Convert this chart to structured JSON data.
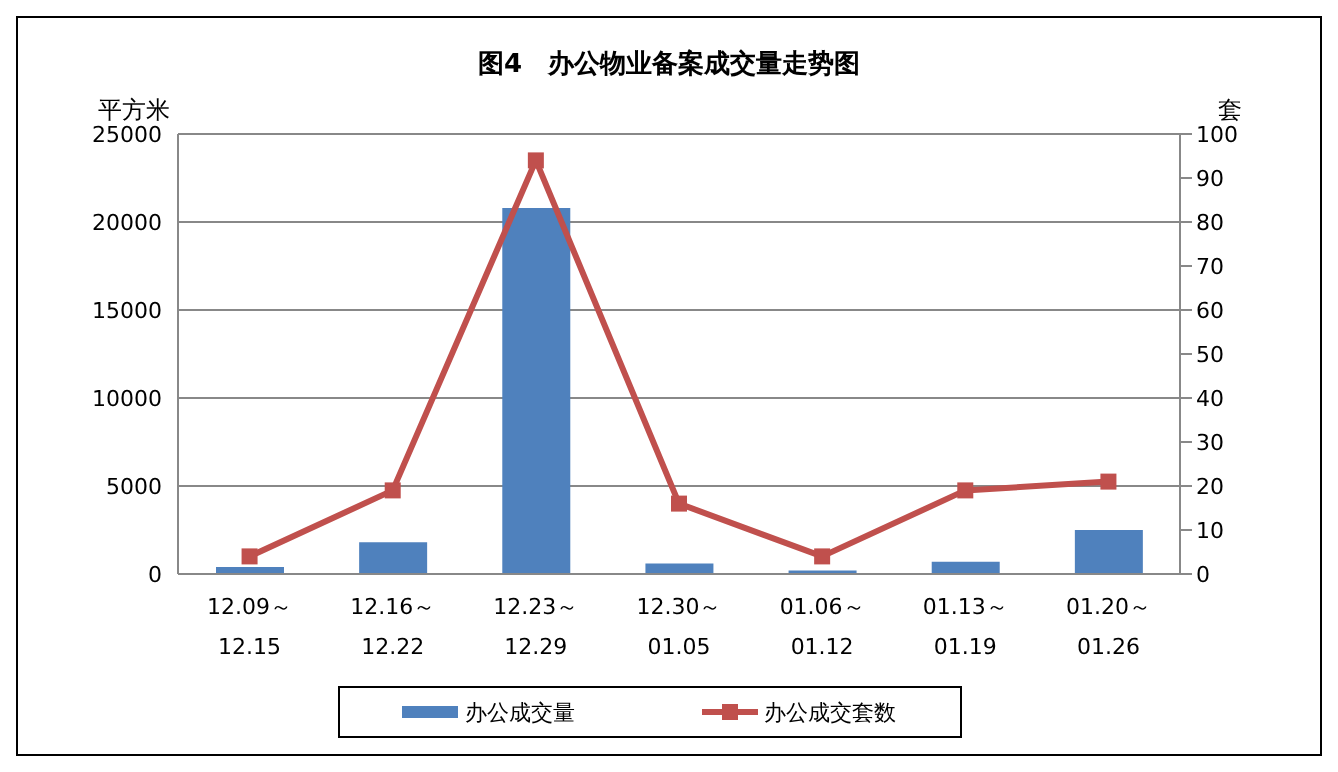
{
  "chart_data": {
    "type": "bar",
    "title": "图4　办公物业备案成交量走势图",
    "ylabel": "平方米",
    "y2label": "套",
    "categories": [
      "12.09～\n12.15",
      "12.16～\n12.22",
      "12.23～\n12.29",
      "12.30～\n01.05",
      "01.06～\n01.12",
      "01.13～\n01.19",
      "01.20～\n01.26"
    ],
    "series": [
      {
        "name": "办公成交量",
        "color": "#4f81bd",
        "values": [
          400,
          1800,
          20800,
          600,
          200,
          700,
          2500
        ]
      },
      {
        "name": "办公成交套数",
        "type": "line",
        "axis": "y2",
        "color": "#c0504d",
        "marker": "square",
        "values": [
          4,
          19,
          94,
          16,
          4,
          19,
          21
        ]
      }
    ],
    "ylim": [
      0,
      25000
    ],
    "yticks": [
      0,
      5000,
      10000,
      15000,
      20000,
      25000
    ],
    "y2lim": [
      0,
      100
    ],
    "y2ticks": [
      0,
      10,
      20,
      30,
      40,
      50,
      60,
      70,
      80,
      90,
      100
    ],
    "grid": "y",
    "legend": "bottom"
  }
}
